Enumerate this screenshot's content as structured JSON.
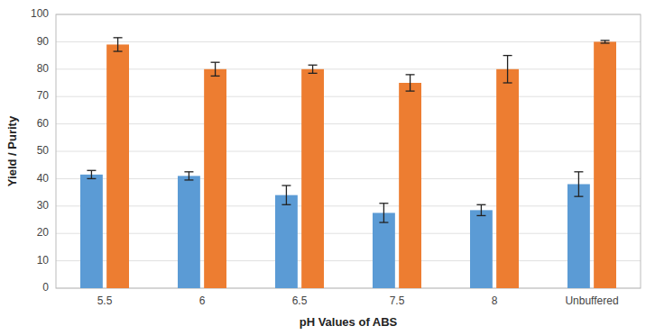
{
  "chart_data": {
    "type": "bar",
    "xlabel": "pH Values of ABS",
    "ylabel": "Yield / Purity",
    "categories": [
      "5.5",
      "6",
      "6.5",
      "7.5",
      "8",
      "Unbuffered"
    ],
    "series": [
      {
        "color": "#5B9BD5",
        "values": [
          41.5,
          41.0,
          34.0,
          27.5,
          28.5,
          38.0
        ],
        "errors": [
          1.5,
          1.5,
          3.5,
          3.5,
          2.0,
          4.5
        ]
      },
      {
        "color": "#ED7D31",
        "values": [
          89.0,
          80.0,
          80.0,
          75.0,
          80.0,
          90.0
        ],
        "errors": [
          2.5,
          2.5,
          1.5,
          3.0,
          5.0,
          0.5
        ]
      }
    ],
    "ylim": [
      0,
      100
    ],
    "yticks": [
      0,
      10,
      20,
      30,
      40,
      50,
      60,
      70,
      80,
      90,
      100
    ],
    "grid": true
  }
}
